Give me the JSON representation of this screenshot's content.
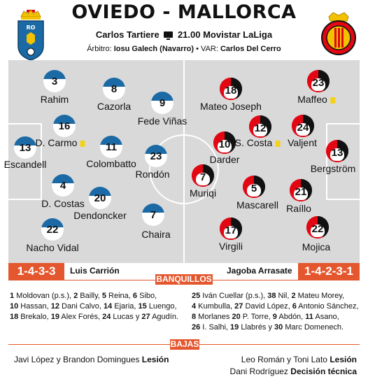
{
  "header": {
    "title": "OVIEDO - MALLORCA",
    "venue": "Carlos Tartiere",
    "broadcast": "21.00 Movistar LaLiga",
    "referee_label": "Árbitro:",
    "referee": "Iosu Galech (Navarro)",
    "var_label": "• VAR:",
    "var": "Carlos Del Cerro"
  },
  "colors": {
    "oviedo": "#1b6aa5",
    "mallorca_red": "#e30613",
    "mallorca_black": "#111111",
    "accent": "#e4572e",
    "pitch": "#d9d9d9",
    "card": "#f2d21b"
  },
  "crests": {
    "home_lettering": "RO",
    "home": "oviedo-crest-icon",
    "away": "mallorca-crest-icon"
  },
  "oviedo_players": [
    {
      "num": "3",
      "name": "Rahim"
    },
    {
      "num": "8",
      "name": "Cazorla"
    },
    {
      "num": "9",
      "name": "Fede Viñas"
    },
    {
      "num": "16",
      "name": "D. Carmo",
      "card": true
    },
    {
      "num": "13",
      "name": "Escandell"
    },
    {
      "num": "11",
      "name": "Colombatto"
    },
    {
      "num": "23",
      "name": "Rondón"
    },
    {
      "num": "4",
      "name": "D. Costas"
    },
    {
      "num": "20",
      "name": "Dendoncker"
    },
    {
      "num": "22",
      "name": "Nacho Vidal"
    },
    {
      "num": "7",
      "name": "Chaira"
    }
  ],
  "mallorca_players": [
    {
      "num": "18",
      "name": "Mateo Joseph"
    },
    {
      "num": "23",
      "name": "Maffeo",
      "card": true
    },
    {
      "num": "12",
      "name": "S. Costa",
      "card": true
    },
    {
      "num": "10",
      "name": "Darder"
    },
    {
      "num": "24",
      "name": "Valjent"
    },
    {
      "num": "13",
      "name": "Bergström"
    },
    {
      "num": "7",
      "name": "Muriqi"
    },
    {
      "num": "5",
      "name": "Mascarell"
    },
    {
      "num": "21",
      "name": "Raíllo"
    },
    {
      "num": "17",
      "name": "Virgili"
    },
    {
      "num": "22",
      "name": "Mojica"
    }
  ],
  "coaches": {
    "home_formation": "1-4-3-3",
    "home_coach": "Luis Carrión",
    "away_coach": "Jagoba Arrasate",
    "away_formation": "1-4-2-3-1"
  },
  "bench": {
    "label": "BANQUILLOS",
    "home": [
      [
        [
          "1",
          "Moldovan (p.s.),"
        ],
        [
          "2",
          "Bailly,"
        ],
        [
          "5",
          "Reina,"
        ],
        [
          "6",
          "Sibo,"
        ]
      ],
      [
        [
          "10",
          "Hassan,"
        ],
        [
          "12",
          "Dani Calvo,"
        ],
        [
          "14",
          "Ejaria,"
        ],
        [
          "15",
          "Luengo,"
        ]
      ],
      [
        [
          "18",
          "Brekalo,"
        ],
        [
          "19",
          "Alex Forés,"
        ],
        [
          "24",
          "Lucas y"
        ],
        [
          "27",
          "Agudín."
        ]
      ]
    ],
    "away": [
      [
        [
          "25",
          "Iván Cuellar (p.s.),"
        ],
        [
          "38",
          "Nil,"
        ],
        [
          "2",
          "Mateu Morey,"
        ]
      ],
      [
        [
          "4",
          "Kumbulla,"
        ],
        [
          "27",
          "David López,"
        ],
        [
          "6",
          "Antonio Sánchez,"
        ]
      ],
      [
        [
          "8",
          "Morlanes"
        ],
        [
          "20",
          "P. Torre,"
        ],
        [
          "9",
          "Abdón,"
        ],
        [
          "11",
          "Asano,"
        ]
      ],
      [
        [
          "26",
          "I. Salhi,"
        ],
        [
          "19",
          "Llabrés y"
        ],
        [
          "30",
          "Marc Domenech."
        ]
      ]
    ]
  },
  "absences": {
    "label": "BAJAS",
    "home_text": "Javi  López y Brandon Domingues",
    "home_reason": "Lesión",
    "away_line1_text": "Leo Román y Toni Lato",
    "away_line1_reason": "Lesión",
    "away_line2_text": "Dani Rodríguez",
    "away_line2_reason": "Decisión técnica"
  }
}
